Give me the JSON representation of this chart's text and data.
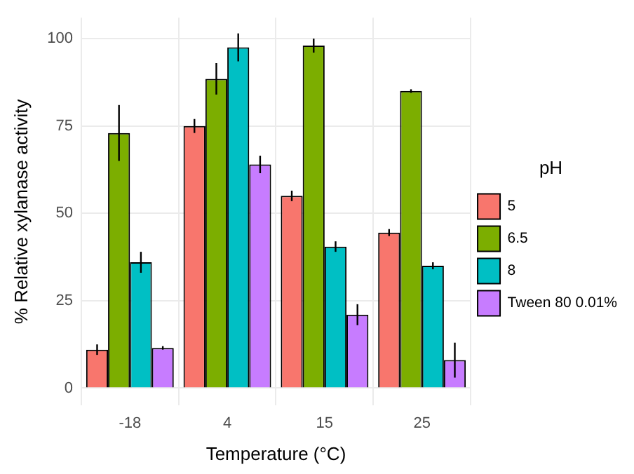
{
  "chart_data": {
    "type": "bar",
    "xlabel": "Temperature (°C)",
    "ylabel": "% Relative xylanase activity",
    "legend_title": "pH",
    "categories": [
      "-18",
      "4",
      "15",
      "25"
    ],
    "series": [
      {
        "name": "5",
        "color": "#f8766d",
        "values": [
          11,
          75,
          55,
          44.5
        ],
        "errors": [
          1.5,
          2,
          1.5,
          1
        ]
      },
      {
        "name": "6.5",
        "color": "#7cae00",
        "values": [
          73,
          88.5,
          98,
          85
        ],
        "errors": [
          8,
          4.5,
          2,
          0.5
        ]
      },
      {
        "name": "8",
        "color": "#00bfc4",
        "values": [
          36,
          97.5,
          40.5,
          35
        ],
        "errors": [
          3,
          4,
          1.5,
          1
        ]
      },
      {
        "name": "Tween 80 0.01%",
        "color": "#c77cff",
        "values": [
          11.5,
          64,
          21,
          8
        ],
        "errors": [
          0.5,
          2.5,
          3,
          5
        ]
      }
    ],
    "ylim": [
      -5,
      106
    ],
    "yticks": [
      0,
      25,
      50,
      75,
      100
    ],
    "grid": true,
    "legend": "right"
  }
}
